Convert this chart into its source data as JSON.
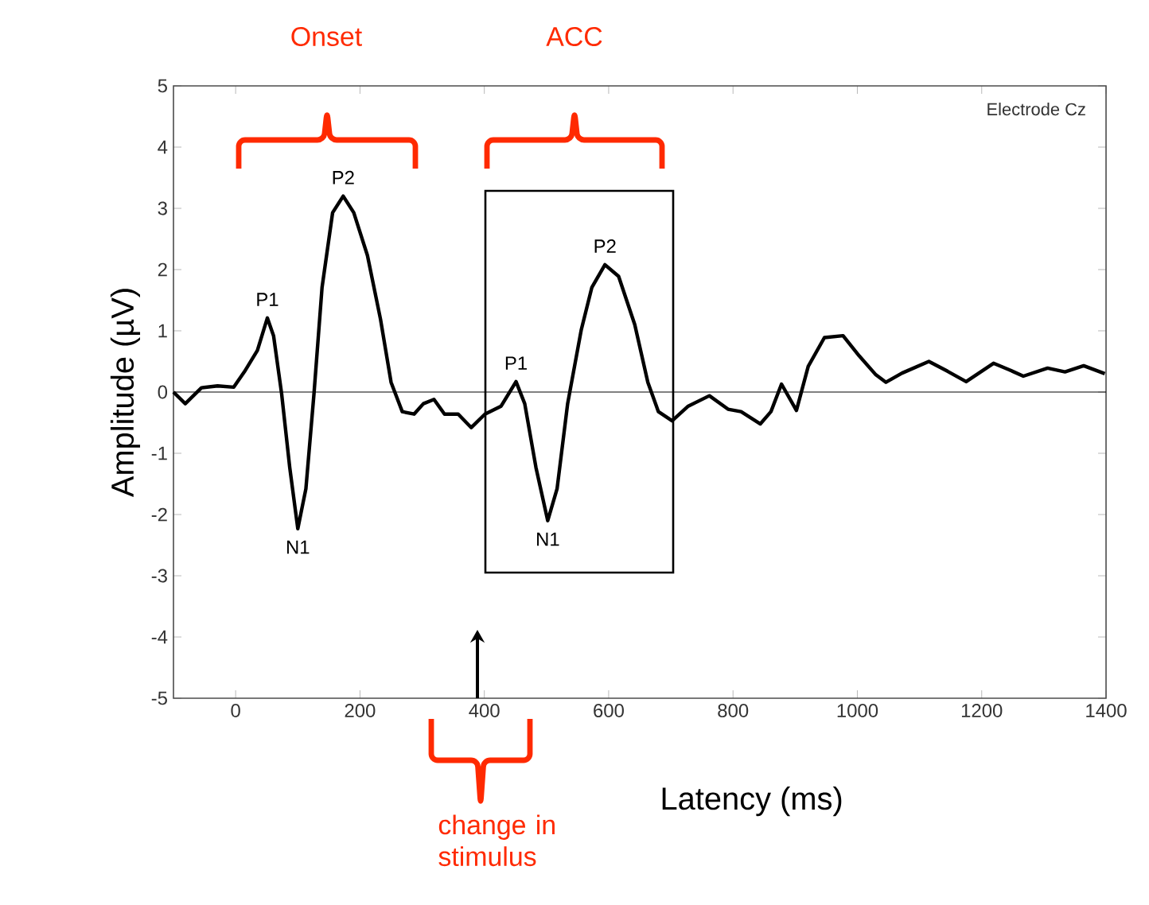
{
  "chart_data": {
    "type": "line",
    "xlabel": "Latency (ms)",
    "ylabel": "Amplitude (µV)",
    "xlim": [
      -100,
      1400
    ],
    "ylim": [
      -5,
      5
    ],
    "xticks": [
      0,
      200,
      400,
      600,
      800,
      1000,
      1200,
      1400
    ],
    "yticks": [
      -5,
      -4,
      -3,
      -2,
      -1,
      0,
      1,
      2,
      3,
      4,
      5
    ],
    "grid": false,
    "marker": "none",
    "line_style": "solid",
    "series": [
      {
        "color": "#000000",
        "x": [
          -100,
          -81,
          -55,
          -29,
          -3,
          14,
          35,
          51,
          61,
          74,
          87,
          100,
          113,
          126,
          139,
          156,
          173,
          190,
          212,
          233,
          250,
          268,
          287,
          302,
          319,
          336,
          358,
          379,
          401,
          427,
          451,
          465,
          483,
          502,
          517,
          534,
          556,
          573,
          594,
          616,
          642,
          663,
          680,
          702,
          728,
          762,
          792,
          813,
          844,
          861,
          878,
          902,
          921,
          947,
          977,
          1003,
          1029,
          1046,
          1072,
          1115,
          1145,
          1175,
          1219,
          1245,
          1267,
          1306,
          1334,
          1364,
          1398
        ],
        "values": [
          0,
          -0.19,
          0.07,
          0.1,
          0.08,
          0.33,
          0.68,
          1.21,
          0.92,
          -0.03,
          -1.23,
          -2.23,
          -1.58,
          -0.03,
          1.71,
          2.93,
          3.2,
          2.93,
          2.23,
          1.19,
          0.16,
          -0.32,
          -0.36,
          -0.19,
          -0.12,
          -0.36,
          -0.36,
          -0.58,
          -0.36,
          -0.23,
          0.17,
          -0.19,
          -1.23,
          -2.1,
          -1.58,
          -0.19,
          1.02,
          1.71,
          2.08,
          1.89,
          1.1,
          0.16,
          -0.32,
          -0.47,
          -0.23,
          -0.06,
          -0.28,
          -0.32,
          -0.52,
          -0.32,
          0.13,
          -0.3,
          0.42,
          0.89,
          0.92,
          0.59,
          0.29,
          0.16,
          0.31,
          0.5,
          0.34,
          0.17,
          0.47,
          0.36,
          0.26,
          0.39,
          0.33,
          0.43,
          0.3
        ]
      }
    ],
    "ref_lines": [
      {
        "axis": "y",
        "value": 0,
        "color": "#000000"
      }
    ],
    "annotations": [
      {
        "text": "P1",
        "x": 51,
        "y": 1.21
      },
      {
        "text": "N1",
        "x": 100,
        "y": -2.23
      },
      {
        "text": "P2",
        "x": 173,
        "y": 3.2
      },
      {
        "text": "P1",
        "x": 451,
        "y": 0.17
      },
      {
        "text": "N1",
        "x": 502,
        "y": -2.1
      },
      {
        "text": "P2",
        "x": 594,
        "y": 2.08
      },
      "Electrode Cz",
      "Onset",
      "ACC",
      "change in stimulus"
    ]
  }
}
